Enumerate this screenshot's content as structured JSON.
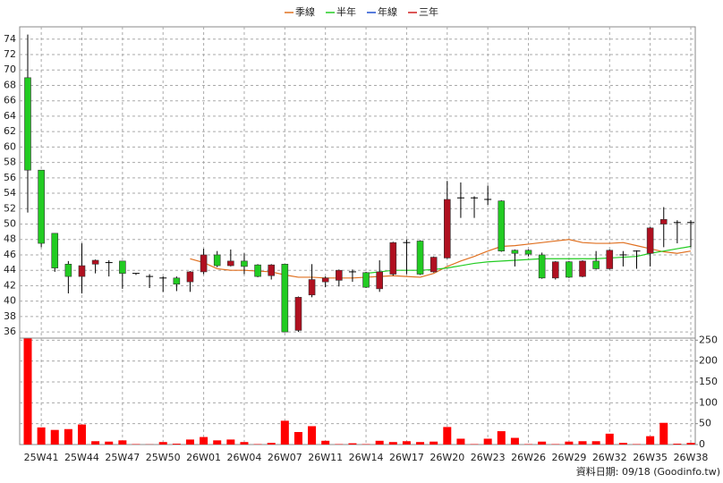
{
  "chart_data": {
    "type": "candlestick",
    "categories": [
      null,
      "25W41",
      null,
      null,
      "25W44",
      null,
      null,
      "25W47",
      null,
      null,
      "25W50",
      null,
      null,
      "26W01",
      null,
      null,
      "26W04",
      null,
      null,
      "26W07",
      null,
      null,
      "26W11",
      null,
      null,
      "26W14",
      null,
      null,
      "26W17",
      null,
      null,
      "26W20",
      null,
      null,
      "26W23",
      null,
      null,
      "26W26",
      null,
      null,
      "26W29",
      null,
      null,
      "26W32",
      null,
      null,
      "26W35",
      null,
      null,
      "26W38"
    ],
    "open": [
      69,
      57,
      48.8,
      44.8,
      43.2,
      44.8,
      45,
      45.2,
      43.6,
      43.2,
      43,
      43,
      42.5,
      43.8,
      46,
      44.6,
      45.2,
      44.7,
      43.3,
      44.8,
      36.2,
      40.8,
      42.5,
      42.7,
      43.8,
      43.7,
      41.6,
      43.5,
      47.6,
      47.8,
      43.8,
      45.6,
      53.4,
      53.4,
      53.2,
      53,
      46.6,
      46.6,
      46,
      43,
      45.1,
      43.2,
      45.2,
      44.2,
      46,
      46.5,
      46.2,
      50,
      50.2,
      50.2
    ],
    "high": [
      74.6,
      57,
      48.8,
      45.2,
      47.5,
      45.4,
      45.3,
      45.2,
      43.6,
      43.5,
      43.2,
      43.2,
      43.9,
      46.8,
      46.5,
      46.7,
      46.2,
      44.8,
      44.8,
      44.8,
      40.6,
      44.8,
      43.2,
      44.1,
      44.1,
      43.8,
      45.3,
      47.7,
      48,
      47.9,
      45.8,
      55.6,
      55.4,
      53.6,
      55,
      53.1,
      46.7,
      46.7,
      46.3,
      45.2,
      45.2,
      45.3,
      46.5,
      46.7,
      46.5,
      46.6,
      49.6,
      52.2,
      50.5,
      50.5
    ],
    "low": [
      51.5,
      47,
      43.8,
      41,
      41,
      43.6,
      43.2,
      41.6,
      43.4,
      41.7,
      41.2,
      41.3,
      41.2,
      43.5,
      44.4,
      44.5,
      43.5,
      43.1,
      42.8,
      36,
      36,
      40.5,
      41.8,
      41.9,
      42.5,
      41.7,
      41.2,
      43.3,
      43.5,
      43.4,
      43.7,
      45.5,
      50.8,
      50.8,
      52.5,
      46.4,
      44.5,
      45.8,
      42.9,
      42.8,
      43,
      43.1,
      44.1,
      44.1,
      44.5,
      44.2,
      44.5,
      47,
      47.5,
      47
    ],
    "close": [
      57,
      47.5,
      44.3,
      43.2,
      44.6,
      45.3,
      45,
      43.6,
      43.6,
      43.2,
      43,
      42.2,
      43.8,
      46,
      44.6,
      45.2,
      44.5,
      43.2,
      44.7,
      36,
      40.5,
      42.8,
      43,
      44,
      43.8,
      41.8,
      43.8,
      47.6,
      47.6,
      43.5,
      45.7,
      53.2,
      53.4,
      53.4,
      53.2,
      46.5,
      46.2,
      46.1,
      43,
      45.1,
      43.1,
      45.2,
      44.2,
      46.6,
      46,
      46.5,
      49.5,
      50.6,
      50.2,
      50.2
    ],
    "up_color": "#b01020",
    "down_color": "#22cc22",
    "series": [
      {
        "name": "季線",
        "color": "#e07020",
        "values": [
          null,
          null,
          null,
          null,
          null,
          null,
          null,
          null,
          null,
          null,
          null,
          null,
          45.5,
          45.0,
          44.2,
          44.0,
          44.0,
          43.9,
          43.8,
          43.4,
          43.1,
          43.1,
          43.0,
          43.0,
          43.0,
          43.1,
          43.2,
          43.3,
          43.2,
          43.1,
          43.6,
          44.5,
          45.2,
          45.8,
          46.5,
          47.1,
          47.2,
          47.4,
          47.6,
          47.8,
          48.0,
          47.6,
          47.5,
          47.5,
          47.6,
          47.2,
          46.8,
          46.4,
          46.2,
          46.5
        ]
      },
      {
        "name": "半年",
        "color": "#22cc22",
        "values": [
          null,
          null,
          null,
          null,
          null,
          null,
          null,
          null,
          null,
          null,
          null,
          null,
          null,
          null,
          null,
          null,
          null,
          null,
          null,
          null,
          null,
          null,
          null,
          null,
          null,
          43.6,
          43.8,
          44.0,
          44.0,
          44.0,
          44.1,
          44.3,
          44.6,
          44.9,
          45.1,
          45.2,
          45.3,
          45.4,
          45.5,
          45.5,
          45.5,
          45.5,
          45.5,
          45.6,
          45.7,
          45.8,
          46.2,
          46.5,
          46.8,
          47.1
        ]
      },
      {
        "name": "年線",
        "color": "#2050d0",
        "values": [
          null,
          null,
          null,
          null,
          null,
          null,
          null,
          null,
          null,
          null,
          null,
          null,
          null,
          null,
          null,
          null,
          null,
          null,
          null,
          null,
          null,
          null,
          null,
          null,
          null,
          null,
          null,
          null,
          null,
          null,
          null,
          null,
          null,
          null,
          null,
          null,
          null,
          null,
          null,
          null,
          null,
          null,
          null,
          null,
          null,
          null,
          null,
          null,
          null,
          null
        ]
      },
      {
        "name": "三年",
        "color": "#d02020",
        "values": [
          null,
          null,
          null,
          null,
          null,
          null,
          null,
          null,
          null,
          null,
          null,
          null,
          null,
          null,
          null,
          null,
          null,
          null,
          null,
          null,
          null,
          null,
          null,
          null,
          null,
          null,
          null,
          null,
          null,
          null,
          null,
          null,
          null,
          null,
          null,
          null,
          null,
          null,
          null,
          null,
          null,
          null,
          null,
          null,
          null,
          null,
          null,
          null,
          null,
          null
        ]
      }
    ],
    "ylim": [
      35.2,
      75.6
    ],
    "yticks": [
      36,
      38,
      40,
      42,
      44,
      46,
      48,
      50,
      52,
      54,
      56,
      58,
      60,
      62,
      64,
      66,
      68,
      70,
      72,
      74
    ],
    "grid": true,
    "volume": {
      "color": "#ff0000",
      "values": [
        254,
        41,
        35,
        37,
        48,
        8,
        7,
        10,
        1,
        0.5,
        6,
        2,
        12,
        18,
        10,
        12,
        6,
        1,
        4,
        57,
        30,
        44,
        9,
        1,
        3,
        1,
        9,
        6,
        8,
        6,
        7,
        42,
        14,
        1,
        14,
        32,
        16,
        1,
        7,
        1,
        7,
        8,
        8,
        26,
        4,
        1,
        20,
        52,
        2,
        4
      ],
      "ylim": [
        0,
        255
      ],
      "yticks": [
        0,
        50,
        100,
        150,
        200,
        250
      ]
    },
    "footer": "資料日期: 09/18  (Goodinfo.tw)"
  }
}
